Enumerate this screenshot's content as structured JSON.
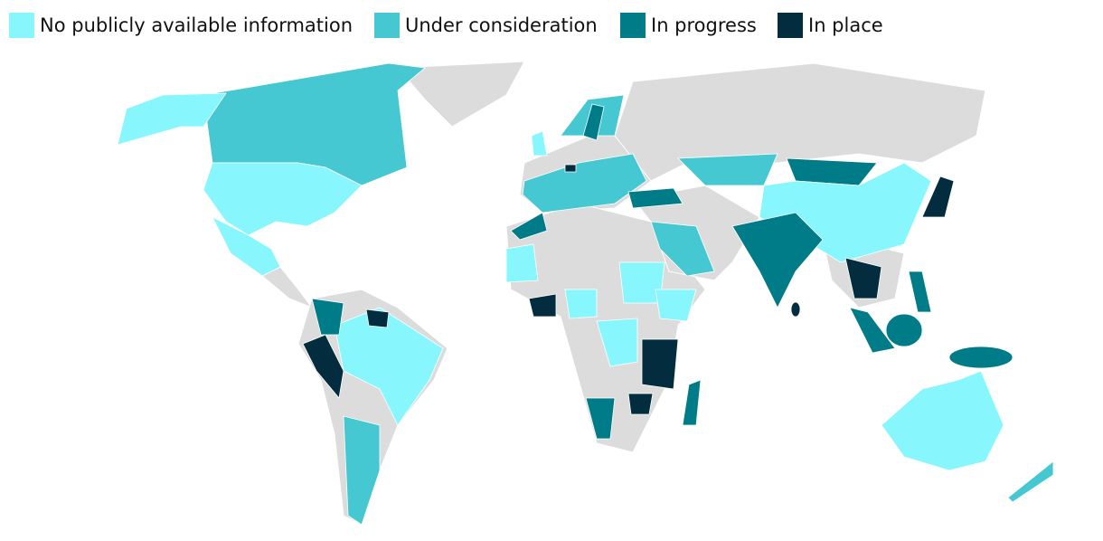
{
  "legend": [
    {
      "label": "No publicly available information",
      "color": "#88f7fd"
    },
    {
      "label": "Under consideration",
      "color": "#45c8d2"
    },
    {
      "label": "In progress",
      "color": "#007b88"
    },
    {
      "label": "In place",
      "color": "#032c3e"
    }
  ]
}
